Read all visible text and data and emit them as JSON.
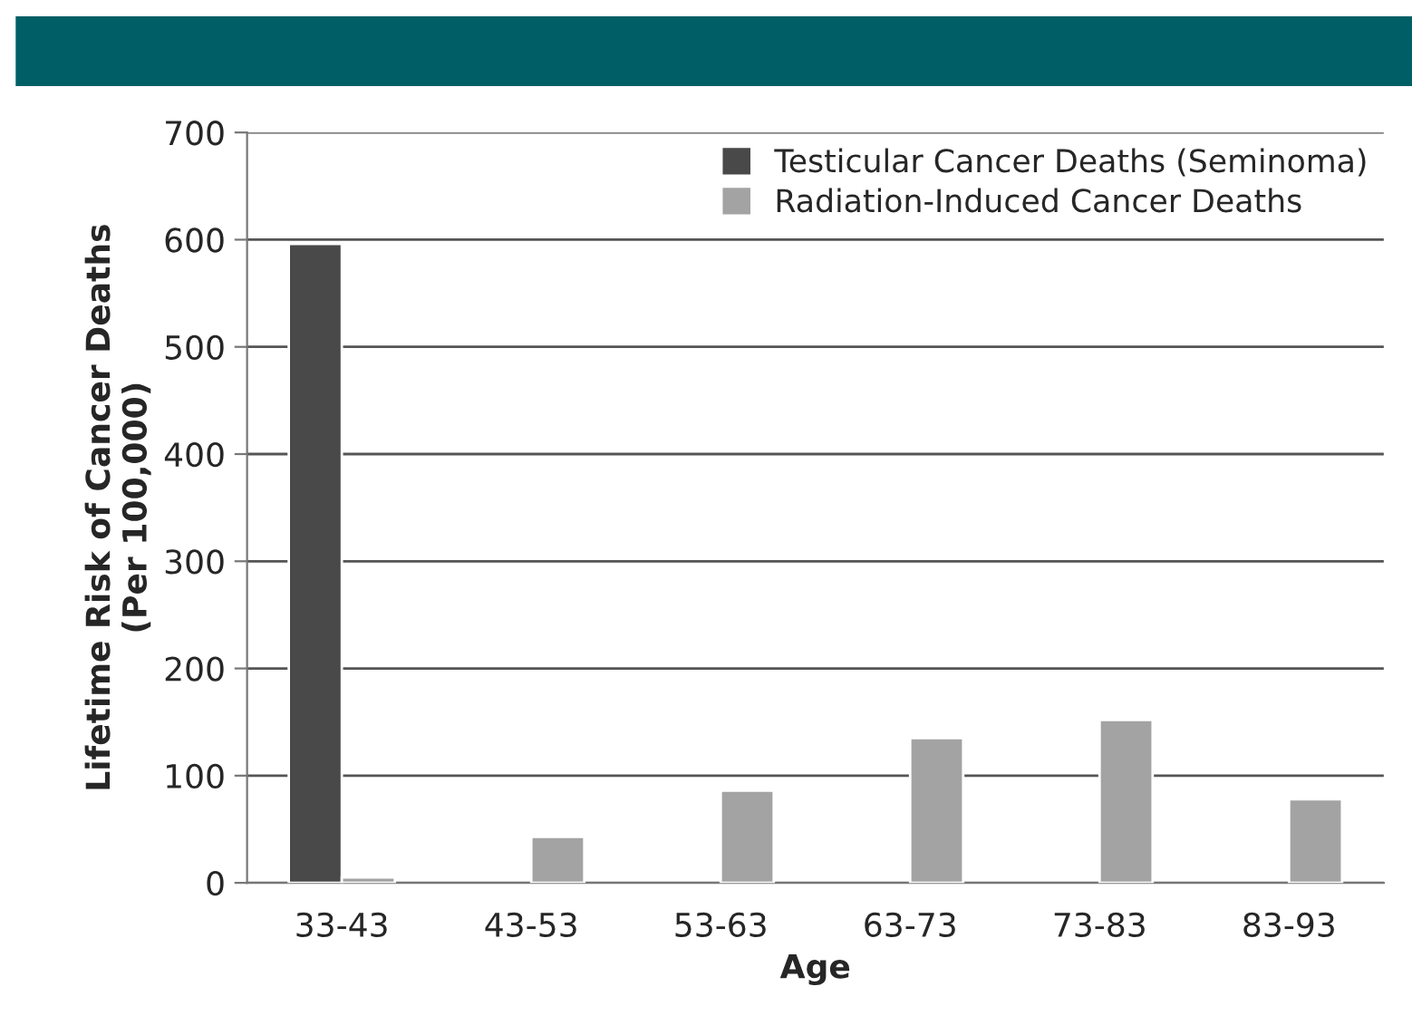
{
  "chart_data": {
    "type": "bar",
    "xlabel": "Age",
    "ylabel": "Lifetime Risk of Cancer Deaths\n(Per 100,000)",
    "categories": [
      "33-43",
      "43-53",
      "53-63",
      "63-73",
      "73-83",
      "83-93"
    ],
    "series": [
      {
        "name": "Testicular Cancer Deaths (Seminoma)",
        "color": "#494949",
        "values": [
          596,
          null,
          null,
          null,
          null,
          null
        ]
      },
      {
        "name": "Radiation-Induced Cancer Deaths",
        "color": "#a3a3a3",
        "values": [
          5,
          43,
          86,
          135,
          152,
          78
        ]
      }
    ],
    "ylim": [
      0,
      700
    ],
    "yticks": [
      0,
      100,
      200,
      300,
      400,
      500,
      600,
      700
    ],
    "grid": "y",
    "legend": "top right"
  }
}
